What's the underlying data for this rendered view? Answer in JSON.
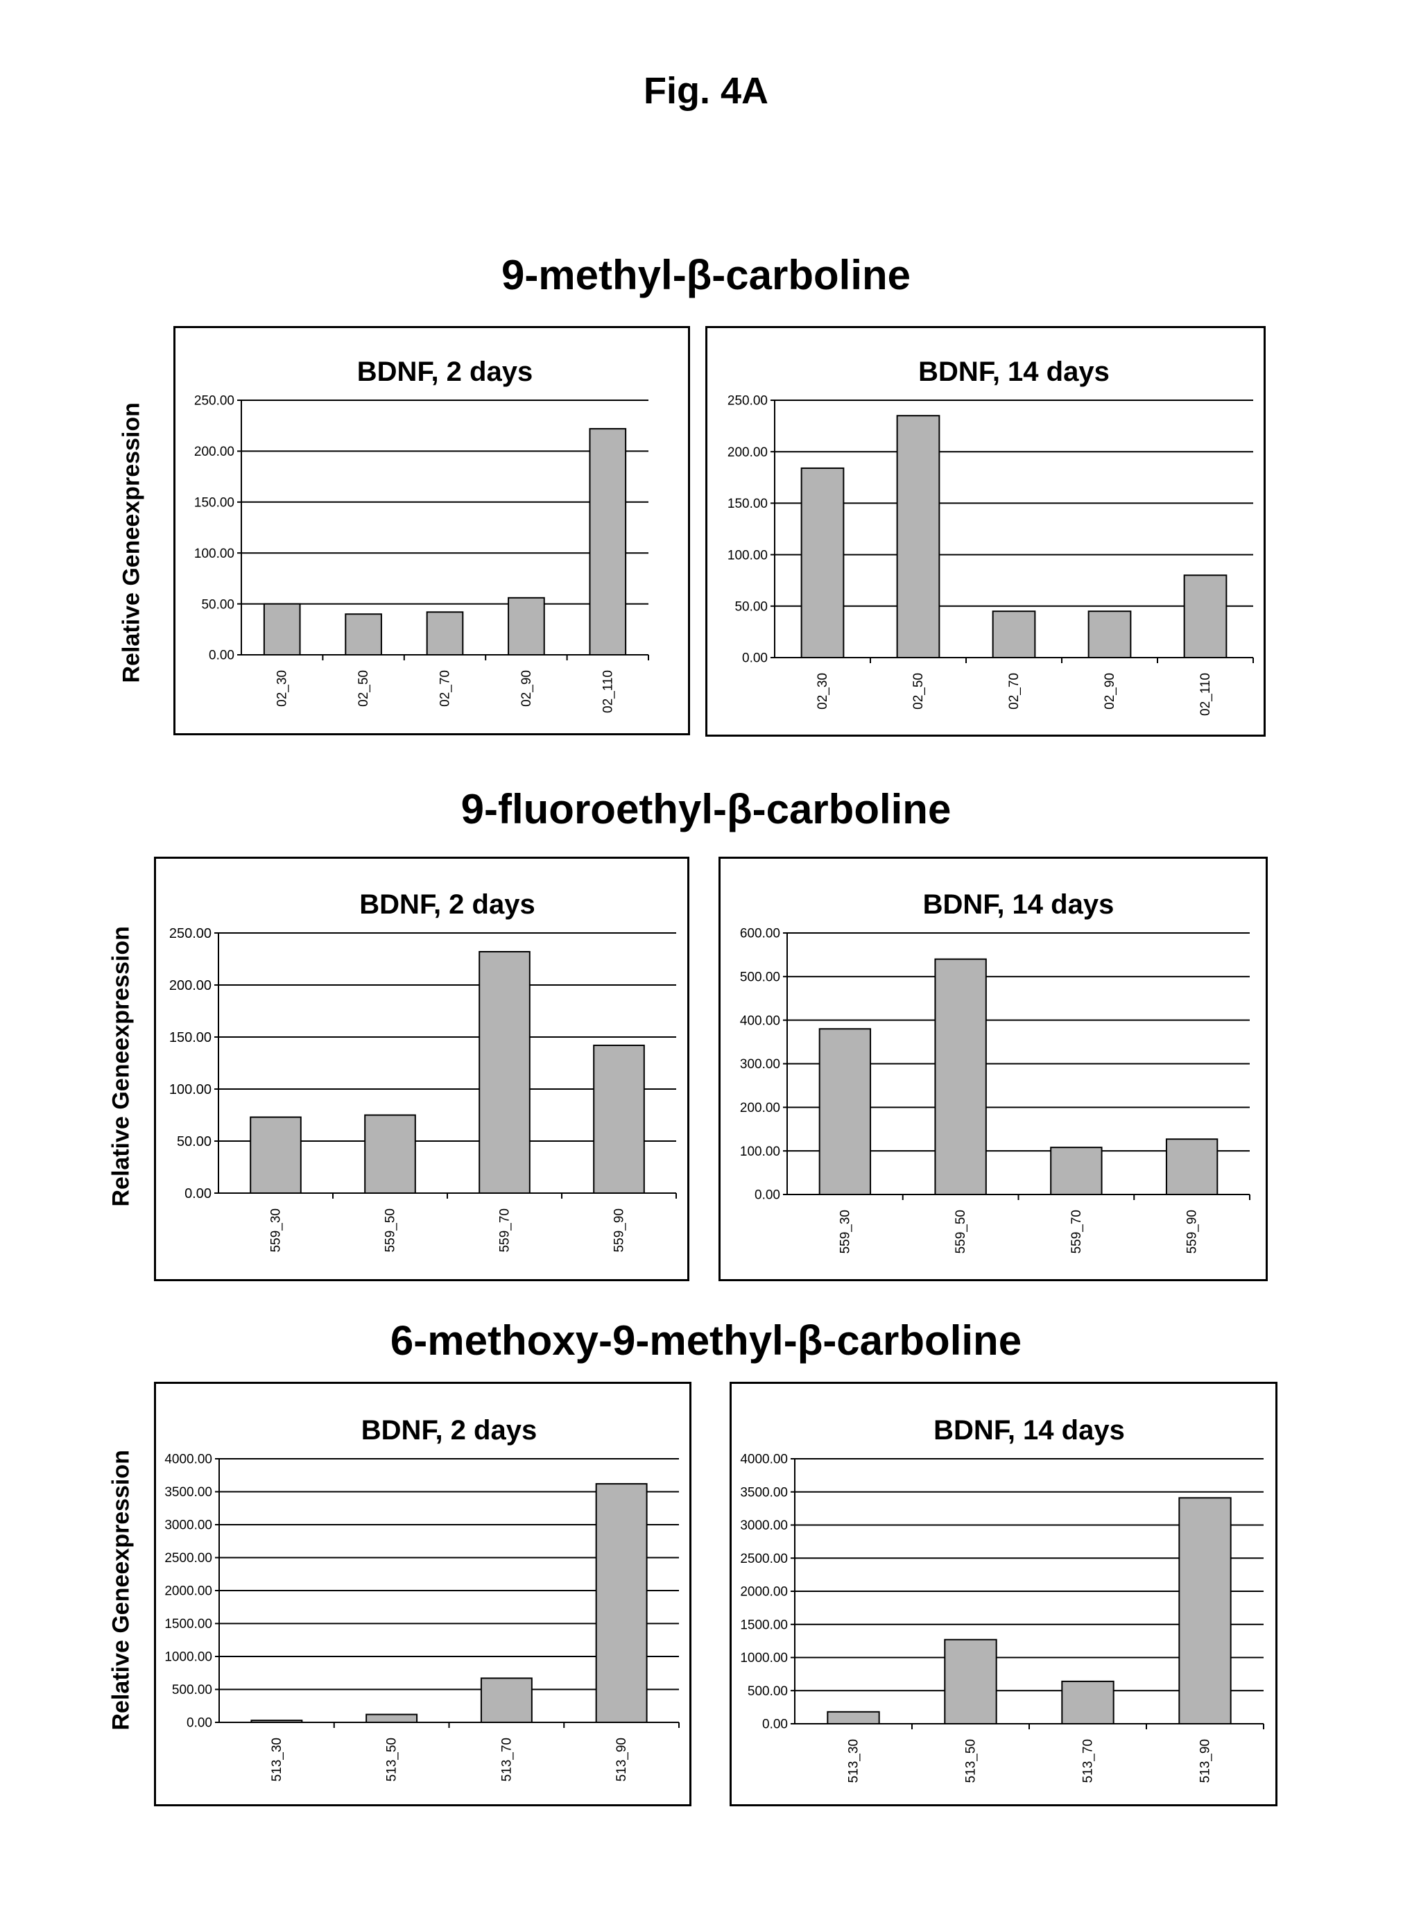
{
  "figure_title": "Fig. 4A",
  "rows": [
    {
      "title": "9-methyl-β-carboline",
      "ylabel": "Relative Geneexpression"
    },
    {
      "title": "9-fluoroethyl-β-carboline",
      "ylabel": "Relative Geneexpression"
    },
    {
      "title": "6-methoxy-9-methyl-β-carboline",
      "ylabel": "Relative Geneexpression"
    }
  ],
  "chart_data": [
    {
      "type": "bar",
      "title": "BDNF, 2 days",
      "xlabel": "",
      "ylabel": "Relative Geneexpression",
      "categories": [
        "02_30",
        "02_50",
        "02_70",
        "02_90",
        "02_110"
      ],
      "values": [
        50,
        40,
        42,
        56,
        222
      ],
      "ylim": [
        0,
        250
      ],
      "yticks": [
        0,
        50,
        100,
        150,
        200,
        250
      ],
      "ytick_labels": [
        "0.00",
        "50.00",
        "100.00",
        "150.00",
        "200.00",
        "250.00"
      ],
      "grid": true,
      "legend": "none",
      "bar_color": "#b4b4b4"
    },
    {
      "type": "bar",
      "title": "BDNF, 14 days",
      "xlabel": "",
      "ylabel": "Relative Geneexpression",
      "categories": [
        "02_30",
        "02_50",
        "02_70",
        "02_90",
        "02_110"
      ],
      "values": [
        184,
        235,
        45,
        45,
        80
      ],
      "ylim": [
        0,
        250
      ],
      "yticks": [
        0,
        50,
        100,
        150,
        200,
        250
      ],
      "ytick_labels": [
        "0.00",
        "50.00",
        "100.00",
        "150.00",
        "200.00",
        "250.00"
      ],
      "grid": true,
      "legend": "none",
      "bar_color": "#b4b4b4"
    },
    {
      "type": "bar",
      "title": "BDNF, 2 days",
      "xlabel": "",
      "ylabel": "Relative Geneexpression",
      "categories": [
        "559_30",
        "559_50",
        "559_70",
        "559_90"
      ],
      "values": [
        73,
        75,
        232,
        142
      ],
      "ylim": [
        0,
        250
      ],
      "yticks": [
        0,
        50,
        100,
        150,
        200,
        250
      ],
      "ytick_labels": [
        "0.00",
        "50.00",
        "100.00",
        "150.00",
        "200.00",
        "250.00"
      ],
      "grid": true,
      "legend": "none",
      "bar_color": "#b4b4b4"
    },
    {
      "type": "bar",
      "title": "BDNF, 14 days",
      "xlabel": "",
      "ylabel": "Relative Geneexpression",
      "categories": [
        "559_30",
        "559_50",
        "559_70",
        "559_90"
      ],
      "values": [
        380,
        540,
        108,
        127
      ],
      "ylim": [
        0,
        600
      ],
      "yticks": [
        0,
        100,
        200,
        300,
        400,
        500,
        600
      ],
      "ytick_labels": [
        "0.00",
        "100.00",
        "200.00",
        "300.00",
        "400.00",
        "500.00",
        "600.00"
      ],
      "grid": true,
      "legend": "none",
      "bar_color": "#b4b4b4"
    },
    {
      "type": "bar",
      "title": "BDNF, 2 days",
      "xlabel": "",
      "ylabel": "Relative Geneexpression",
      "categories": [
        "513_30",
        "513_50",
        "513_70",
        "513_90"
      ],
      "values": [
        30,
        120,
        670,
        3620
      ],
      "ylim": [
        0,
        4000
      ],
      "yticks": [
        0,
        500,
        1000,
        1500,
        2000,
        2500,
        3000,
        3500,
        4000
      ],
      "ytick_labels": [
        "0.00",
        "500.00",
        "1000.00",
        "1500.00",
        "2000.00",
        "2500.00",
        "3000.00",
        "3500.00",
        "4000.00"
      ],
      "grid": true,
      "legend": "none",
      "bar_color": "#b4b4b4"
    },
    {
      "type": "bar",
      "title": "BDNF, 14 days",
      "xlabel": "",
      "ylabel": "Relative Geneexpression",
      "categories": [
        "513_30",
        "513_50",
        "513_70",
        "513_90"
      ],
      "values": [
        180,
        1270,
        640,
        3410
      ],
      "ylim": [
        0,
        4000
      ],
      "yticks": [
        0,
        500,
        1000,
        1500,
        2000,
        2500,
        3000,
        3500,
        4000
      ],
      "ytick_labels": [
        "0.00",
        "500.00",
        "1000.00",
        "1500.00",
        "2000.00",
        "2500.00",
        "3000.00",
        "3500.00",
        "4000.00"
      ],
      "grid": true,
      "legend": "none",
      "bar_color": "#b4b4b4"
    }
  ]
}
